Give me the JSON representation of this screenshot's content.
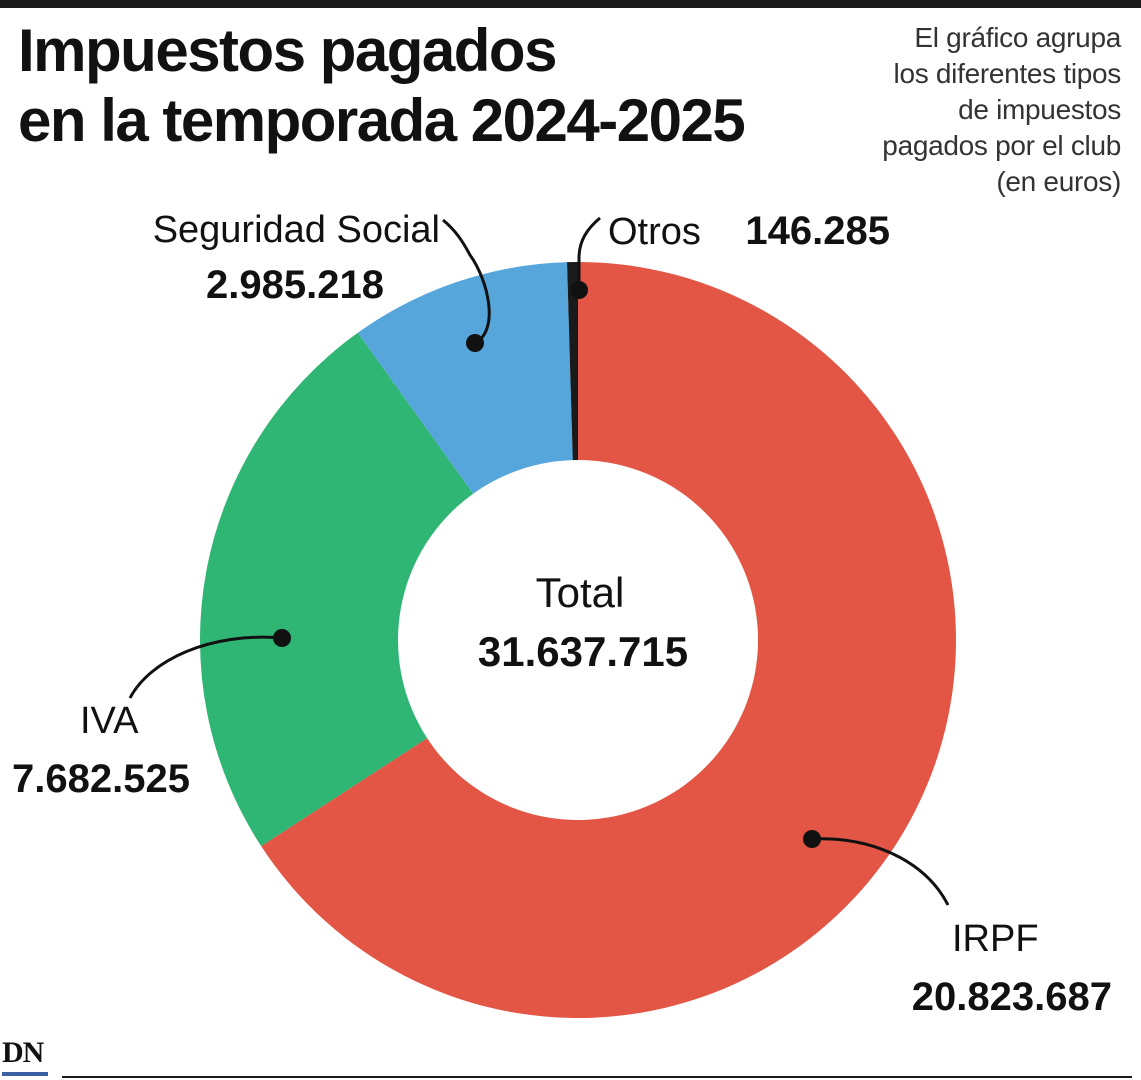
{
  "header": {
    "title_line1": "Impuestos pagados",
    "title_line2": "en la temporada 2024-2025",
    "note_lines": [
      "El gráfico agrupa",
      "los diferentes tipos",
      "de impuestos",
      "pagados por el club",
      "(en euros)"
    ]
  },
  "chart_data": {
    "type": "pie",
    "subtype": "donut",
    "unit": "euros",
    "center": {
      "label": "Total",
      "value": "31.637.715",
      "number": 31637715
    },
    "slices": [
      {
        "name": "IRPF",
        "value": 20823687,
        "display": "20.823.687",
        "color": "#e35544"
      },
      {
        "name": "IVA",
        "value": 7682525,
        "display": "7.682.525",
        "color": "#2fb574"
      },
      {
        "name": "Seguridad Social",
        "value": 2985218,
        "display": "2.985.218",
        "color": "#56a6dc"
      },
      {
        "name": "Otros",
        "value": 146285,
        "display": "146.285",
        "color": "#1a1a1a"
      }
    ]
  },
  "brand": {
    "logo_text": "DN",
    "accent": "#3b5fa3"
  }
}
